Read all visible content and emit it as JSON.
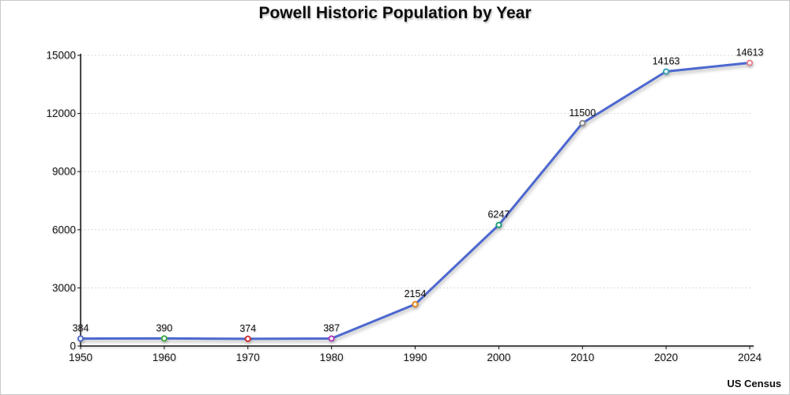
{
  "chart_data": {
    "type": "line",
    "title": "Powell Historic Population by Year",
    "source": "US Census",
    "series_name": "Population",
    "categories": [
      "1950",
      "1960",
      "1970",
      "1980",
      "1990",
      "2000",
      "2010",
      "2020",
      "2024"
    ],
    "values": [
      384,
      390,
      374,
      387,
      2154,
      6247,
      11500,
      14163,
      14613
    ],
    "data_labels": [
      "384",
      "390",
      "374",
      "387",
      "2154",
      "6247",
      "11500",
      "14163",
      "14613"
    ],
    "xlabel": "",
    "ylabel": "",
    "ylim": [
      0,
      15000
    ],
    "y_ticks": [
      0,
      3000,
      6000,
      9000,
      12000,
      15000
    ],
    "grid": "horizontal-dotted",
    "legend": "none",
    "line_color": "#4D68D0",
    "marker_fill": "#f7f8fc",
    "marker_colors": [
      "#4D68D0",
      "#3BAA3B",
      "#D32F2F",
      "#AD3BBE",
      "#E8861B",
      "#1AA179",
      "#8A8A8A",
      "#35A2B5",
      "#E8838F"
    ],
    "grid_color": "#cbcbcb",
    "axis_color": "#111111"
  }
}
